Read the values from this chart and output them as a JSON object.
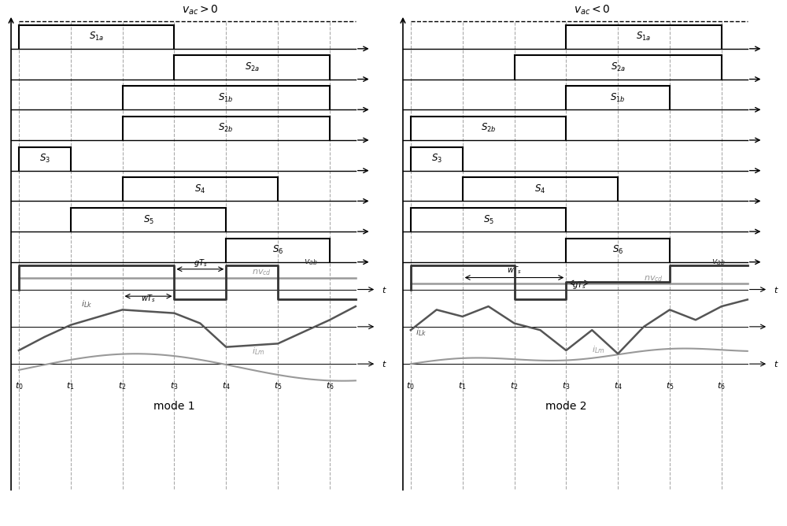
{
  "bg_color": "#ffffff",
  "fg_color": "#000000",
  "gray_color": "#888888",
  "dark_gray": "#555555",
  "t_labels": [
    "t_0",
    "t_1",
    "t_2",
    "t_3",
    "t_4",
    "t_5",
    "t_6"
  ],
  "t_positions": [
    0,
    1,
    2,
    3,
    4,
    5,
    6
  ],
  "mode1_title": "$v_{ac} >0$",
  "mode2_title": "$v_{ac} <0$",
  "mode1_label": "mode 1",
  "mode2_label": "mode 2",
  "switch_labels": [
    "$S_{1a}$",
    "$S_{2a}$",
    "$S_{1b}$",
    "$S_{2b}$",
    "$S_3$",
    "$S_4$",
    "$S_5$",
    "$S_6$"
  ],
  "mode1_switches": {
    "S1a": [
      [
        0,
        3
      ]
    ],
    "S2a": [
      [
        3,
        6
      ]
    ],
    "S1b": [
      [
        2,
        6
      ]
    ],
    "S2b": [
      [
        2,
        6
      ]
    ],
    "S3": [
      [
        0,
        1
      ]
    ],
    "S4": [
      [
        2,
        5
      ]
    ],
    "S5": [
      [
        1,
        4
      ]
    ],
    "S6": [
      [
        4,
        6
      ]
    ]
  },
  "mode2_switches": {
    "S1a": [
      [
        3,
        6
      ]
    ],
    "S2a": [
      [
        2,
        6
      ]
    ],
    "S1b": [
      [
        3,
        5
      ]
    ],
    "S2b": [
      [
        0,
        3
      ]
    ],
    "S3": [
      [
        0,
        1
      ]
    ],
    "S4": [
      [
        1,
        4
      ]
    ],
    "S5": [
      [
        0,
        3
      ]
    ],
    "S6": [
      [
        3,
        5
      ]
    ]
  }
}
